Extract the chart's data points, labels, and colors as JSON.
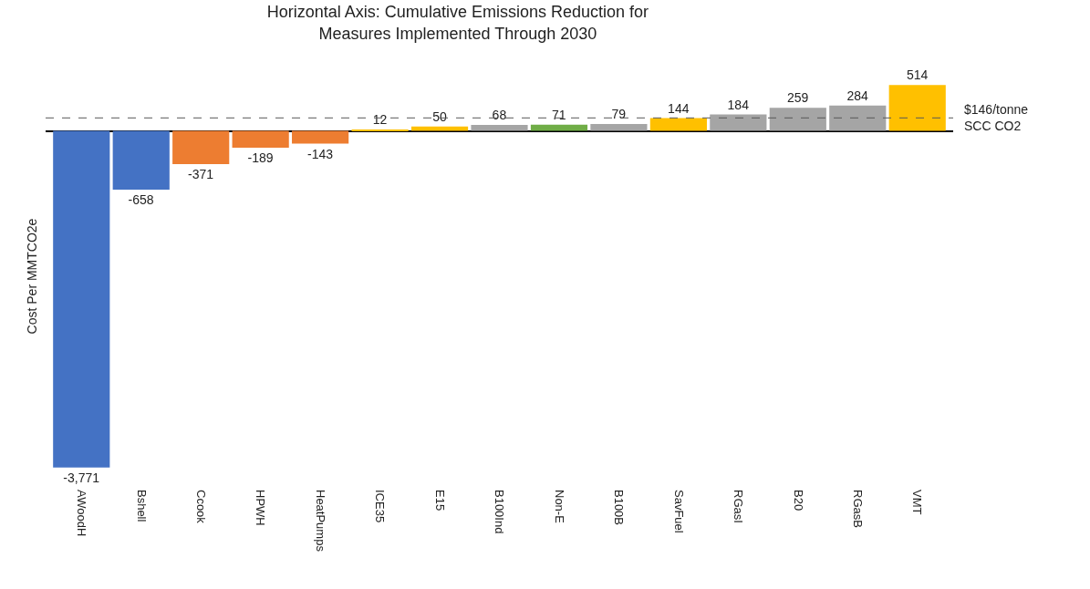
{
  "chart_data": {
    "type": "bar",
    "title": "Horizontal Axis: Cumulative Emissions Reduction for Measures Implemented Through 2030",
    "ylabel": "Cost Per MMTCO2e",
    "categories": [
      "AWoodH",
      "Bshell",
      "Ccook",
      "HPWH",
      "HeatPumps",
      "ICE35",
      "E15",
      "B100Ind",
      "Non-E",
      "B100B",
      "SavFuel",
      "RGasI",
      "B20",
      "RGasB",
      "VMT"
    ],
    "values": [
      -3771,
      -658,
      -371,
      -189,
      -143,
      12,
      50,
      68,
      71,
      79,
      144,
      184,
      259,
      284,
      514
    ],
    "value_labels": [
      "-3,771",
      "-658",
      "-371",
      "-189",
      "-143",
      "12",
      "50",
      "68",
      "71",
      "79",
      "144",
      "184",
      "259",
      "284",
      "514"
    ],
    "colors": [
      "#4472c4",
      "#4472c4",
      "#ed7d31",
      "#ed7d31",
      "#ed7d31",
      "#ffc000",
      "#ffc000",
      "#a5a5a5",
      "#70ad47",
      "#a5a5a5",
      "#ffc000",
      "#a5a5a5",
      "#a5a5a5",
      "#a5a5a5",
      "#ffc000"
    ],
    "ref_lines": [
      {
        "axis": "y",
        "value": 146,
        "label": "$146/tonne SCC CO2",
        "line_style": "dashed",
        "color": "#595959"
      }
    ],
    "grid": false
  }
}
